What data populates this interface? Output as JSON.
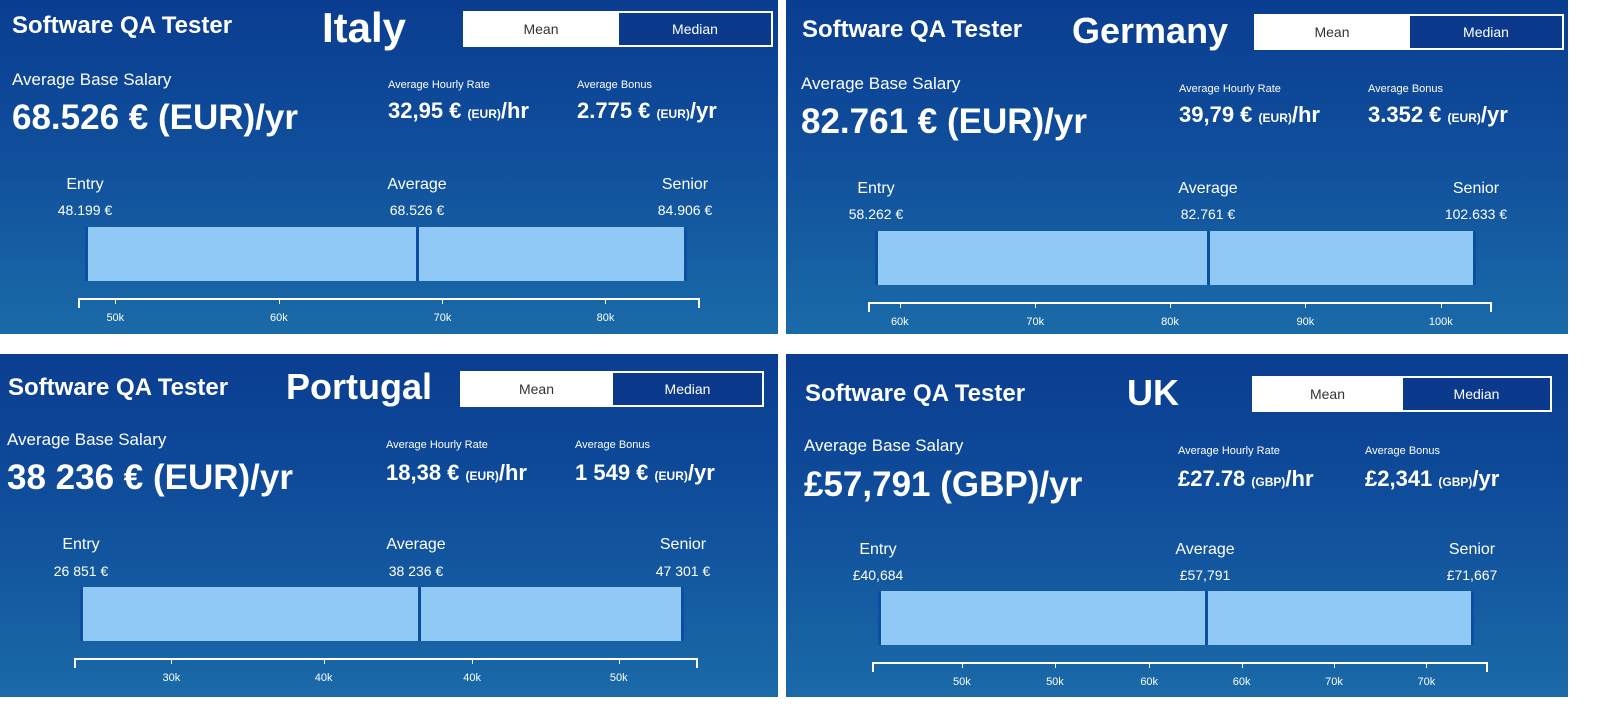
{
  "ui": {
    "mean_label": "Mean",
    "median_label": "Median"
  },
  "panels": [
    {
      "job_title": "Software QA Tester",
      "country": "Italy",
      "base_label": "Average Base Salary",
      "base_value": "68.526 € (EUR)/yr",
      "hourly_label": "Average Hourly Rate",
      "hourly_main": "32,95 €",
      "hourly_unit": "(EUR)",
      "hourly_suffix": "/hr",
      "bonus_label": "Average Bonus",
      "bonus_main": "2.775 €",
      "bonus_unit": "(EUR)",
      "bonus_suffix": "/yr",
      "entry_label": "Entry",
      "entry_value": "48.199 €",
      "average_label": "Average",
      "average_value": "68.526 €",
      "senior_label": "Senior",
      "senior_value": "84.906 €",
      "range_fraction": {
        "entry": 0.012,
        "average": 0.545,
        "senior": 0.979
      },
      "ticks": [
        {
          "label": "50k",
          "frac": 0.06
        },
        {
          "label": "60k",
          "frac": 0.323
        },
        {
          "label": "70k",
          "frac": 0.586
        },
        {
          "label": "80k",
          "frac": 0.848
        }
      ]
    },
    {
      "job_title": "Software QA Tester",
      "country": "Germany",
      "base_label": "Average Base Salary",
      "base_value": "82.761 € (EUR)/yr",
      "hourly_label": "Average Hourly Rate",
      "hourly_main": "39,79 €",
      "hourly_unit": "(EUR)",
      "hourly_suffix": "/hr",
      "bonus_label": "Average Bonus",
      "bonus_main": "3.352 €",
      "bonus_unit": "(EUR)",
      "bonus_suffix": "/yr",
      "entry_label": "Entry",
      "entry_value": "58.262 €",
      "average_label": "Average",
      "average_value": "82.761 €",
      "senior_label": "Senior",
      "senior_value": "102.633 €",
      "range_fraction": {
        "entry": 0.012,
        "average": 0.546,
        "senior": 0.974
      },
      "ticks": [
        {
          "label": "60k",
          "frac": 0.051
        },
        {
          "label": "70k",
          "frac": 0.268
        },
        {
          "label": "80k",
          "frac": 0.484
        },
        {
          "label": "90k",
          "frac": 0.701
        },
        {
          "label": "100k",
          "frac": 0.918
        }
      ]
    },
    {
      "job_title": "Software QA Tester",
      "country": "Portugal",
      "base_label": "Average Base Salary",
      "base_value": "38 236 € (EUR)/yr",
      "hourly_label": "Average Hourly Rate",
      "hourly_main": "18,38 €",
      "hourly_unit": "(EUR)",
      "hourly_suffix": "/hr",
      "bonus_label": "Average Bonus",
      "bonus_main": "1 549 €",
      "bonus_unit": "(EUR)",
      "bonus_suffix": "/yr",
      "entry_label": "Entry",
      "entry_value": "26 851 €",
      "average_label": "Average",
      "average_value": "38 236 €",
      "senior_label": "Senior",
      "senior_value": "47 301 €",
      "range_fraction": {
        "entry": 0.01,
        "average": 0.553,
        "senior": 0.978
      },
      "ticks": [
        {
          "label": "30k",
          "frac": 0.156
        },
        {
          "label": "40k",
          "frac": 0.4
        },
        {
          "label": "40k",
          "frac": 0.638
        },
        {
          "label": "50k",
          "frac": 0.873
        }
      ]
    },
    {
      "job_title": "Software QA Tester",
      "country": "UK",
      "base_label": "Average Base Salary",
      "base_value": "£57,791 (GBP)/yr",
      "hourly_label": "Average Hourly Rate",
      "hourly_main": "£27.78",
      "hourly_unit": "(GBP)",
      "hourly_suffix": "/hr",
      "bonus_label": "Average Bonus",
      "bonus_main": "£2,341",
      "bonus_unit": "(GBP)",
      "bonus_suffix": "/yr",
      "entry_label": "Entry",
      "entry_value": "£40,684",
      "average_label": "Average",
      "average_value": "£57,791",
      "senior_label": "Senior",
      "senior_value": "£71,667",
      "range_fraction": {
        "entry": 0.01,
        "average": 0.543,
        "senior": 0.977
      },
      "ticks": [
        {
          "label": "50k",
          "frac": 0.146
        },
        {
          "label": "50k",
          "frac": 0.297
        },
        {
          "label": "60k",
          "frac": 0.45
        },
        {
          "label": "60k",
          "frac": 0.6
        },
        {
          "label": "70k",
          "frac": 0.75
        },
        {
          "label": "70k",
          "frac": 0.9
        }
      ]
    }
  ]
}
